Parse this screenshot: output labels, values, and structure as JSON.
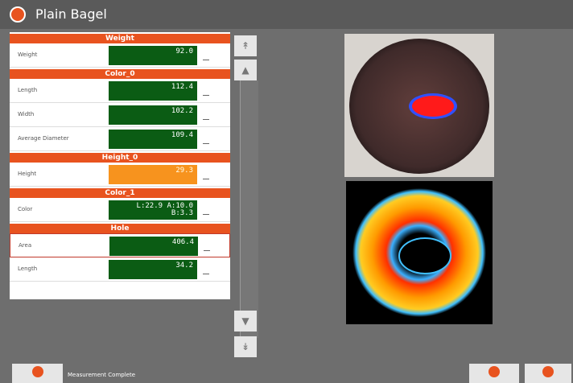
{
  "header": {
    "title": "Plain Bagel"
  },
  "sections": [
    {
      "title": "Weight",
      "rows": [
        {
          "label": "Weight",
          "value": "92.0"
        }
      ]
    },
    {
      "title": "Color_0",
      "rows": [
        {
          "label": "Length",
          "value": "112.4"
        },
        {
          "label": "Width",
          "value": "102.2"
        },
        {
          "label": "Average Diameter",
          "value": "109.4"
        }
      ]
    },
    {
      "title": "Height_0",
      "rows": [
        {
          "label": "Height",
          "value": "29.3",
          "status": "warning"
        }
      ]
    },
    {
      "title": "Color_1",
      "rows": [
        {
          "label": "Color",
          "value": "L:22.9 A:10.0 B:3.3"
        }
      ]
    },
    {
      "title": "Hole",
      "rows": [
        {
          "label": "Area",
          "value": "406.4",
          "selected": true
        },
        {
          "label": "Length",
          "value": "34.2"
        }
      ]
    }
  ],
  "status_bar": {
    "message": "Measurement Complete"
  }
}
